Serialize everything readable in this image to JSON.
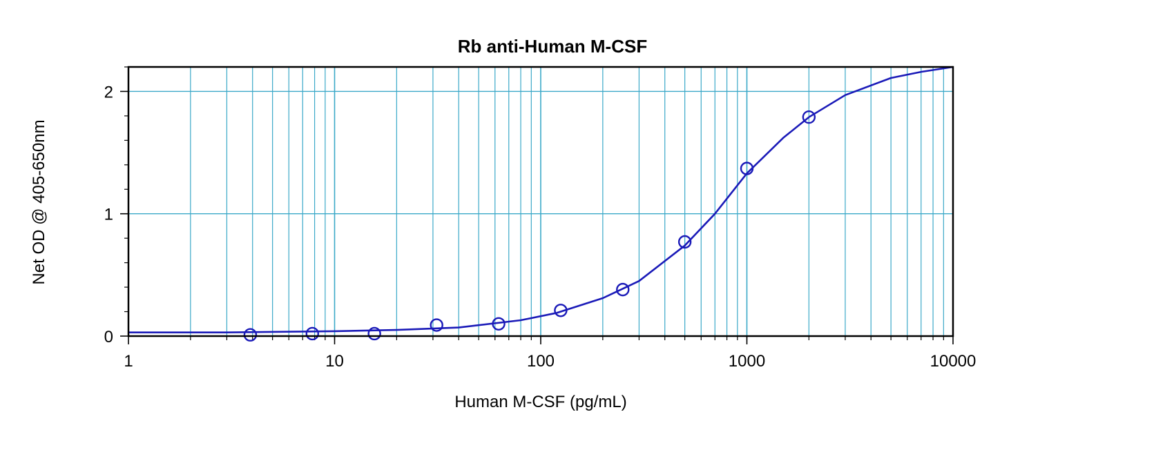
{
  "colors": {
    "grid": "#3aa8c8",
    "series": "#1a1ab8",
    "frame": "#000000",
    "background": "#ffffff"
  },
  "chart_data": {
    "type": "scatter",
    "title": "Rb anti-Human M-CSF",
    "xlabel": "Human M-CSF (pg/mL)",
    "ylabel": "Net OD @ 405-650nm",
    "x_scale": "log",
    "xlim": [
      1,
      10000
    ],
    "ylim": [
      0,
      2.2
    ],
    "x_ticks": [
      1,
      10,
      100,
      1000,
      10000
    ],
    "x_tick_labels": [
      "1",
      "10",
      "100",
      "1000",
      "10000"
    ],
    "y_ticks": [
      0,
      1,
      2
    ],
    "y_tick_labels": [
      "0",
      "1",
      "2"
    ],
    "grid": true,
    "series": [
      {
        "type": "scatter",
        "marker": "open-circle",
        "x": [
          3.9,
          7.8,
          15.6,
          31.25,
          62.5,
          125,
          250,
          500,
          1000,
          2000
        ],
        "y": [
          0.01,
          0.02,
          0.02,
          0.09,
          0.1,
          0.21,
          0.38,
          0.77,
          1.37,
          1.79
        ]
      },
      {
        "type": "line",
        "x": [
          1,
          3,
          10,
          20,
          40,
          80,
          120,
          200,
          300,
          500,
          700,
          1000,
          1500,
          2000,
          3000,
          5000,
          7000,
          10000
        ],
        "y": [
          0.03,
          0.03,
          0.04,
          0.05,
          0.07,
          0.13,
          0.19,
          0.31,
          0.45,
          0.74,
          1.0,
          1.33,
          1.62,
          1.79,
          1.97,
          2.11,
          2.16,
          2.2
        ]
      }
    ]
  }
}
